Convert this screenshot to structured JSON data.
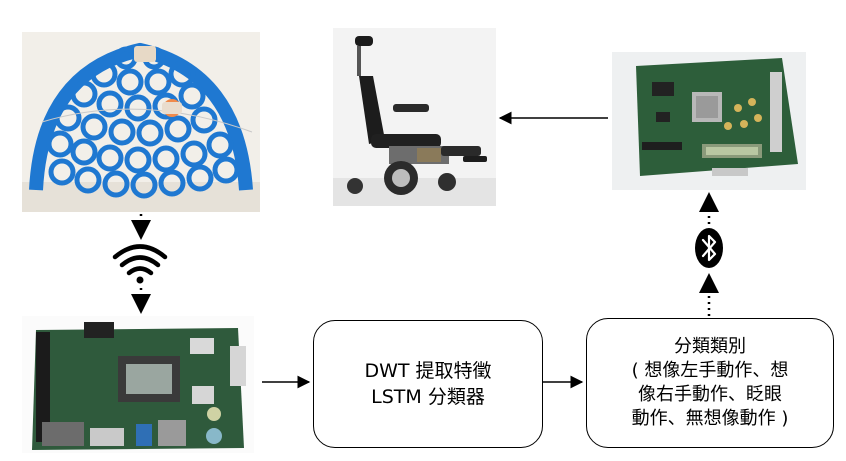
{
  "boxes": {
    "feature_extraction": {
      "line1": "DWT 提取特徵",
      "line2": "LSTM 分類器"
    },
    "classification": {
      "line1": "分類類別",
      "line2": "( 想像左手動作、想",
      "line3": "像右手動作、眨眼",
      "line4": "動作、無想像動作 )"
    }
  },
  "photos": {
    "helmet": "eeg-headset-photo",
    "wheelchair": "electric-wheelchair-photo",
    "fpga": "fpga-board-photo",
    "board": "jetson-board-photo"
  },
  "icons": {
    "wireless": "wifi-icon",
    "bluetooth": "bluetooth-icon"
  },
  "colors": {
    "helmet_blue": "#1f78d1",
    "board_green": "#2f5a3c",
    "fpga_green": "#2d5e3a",
    "line": "#000000"
  }
}
